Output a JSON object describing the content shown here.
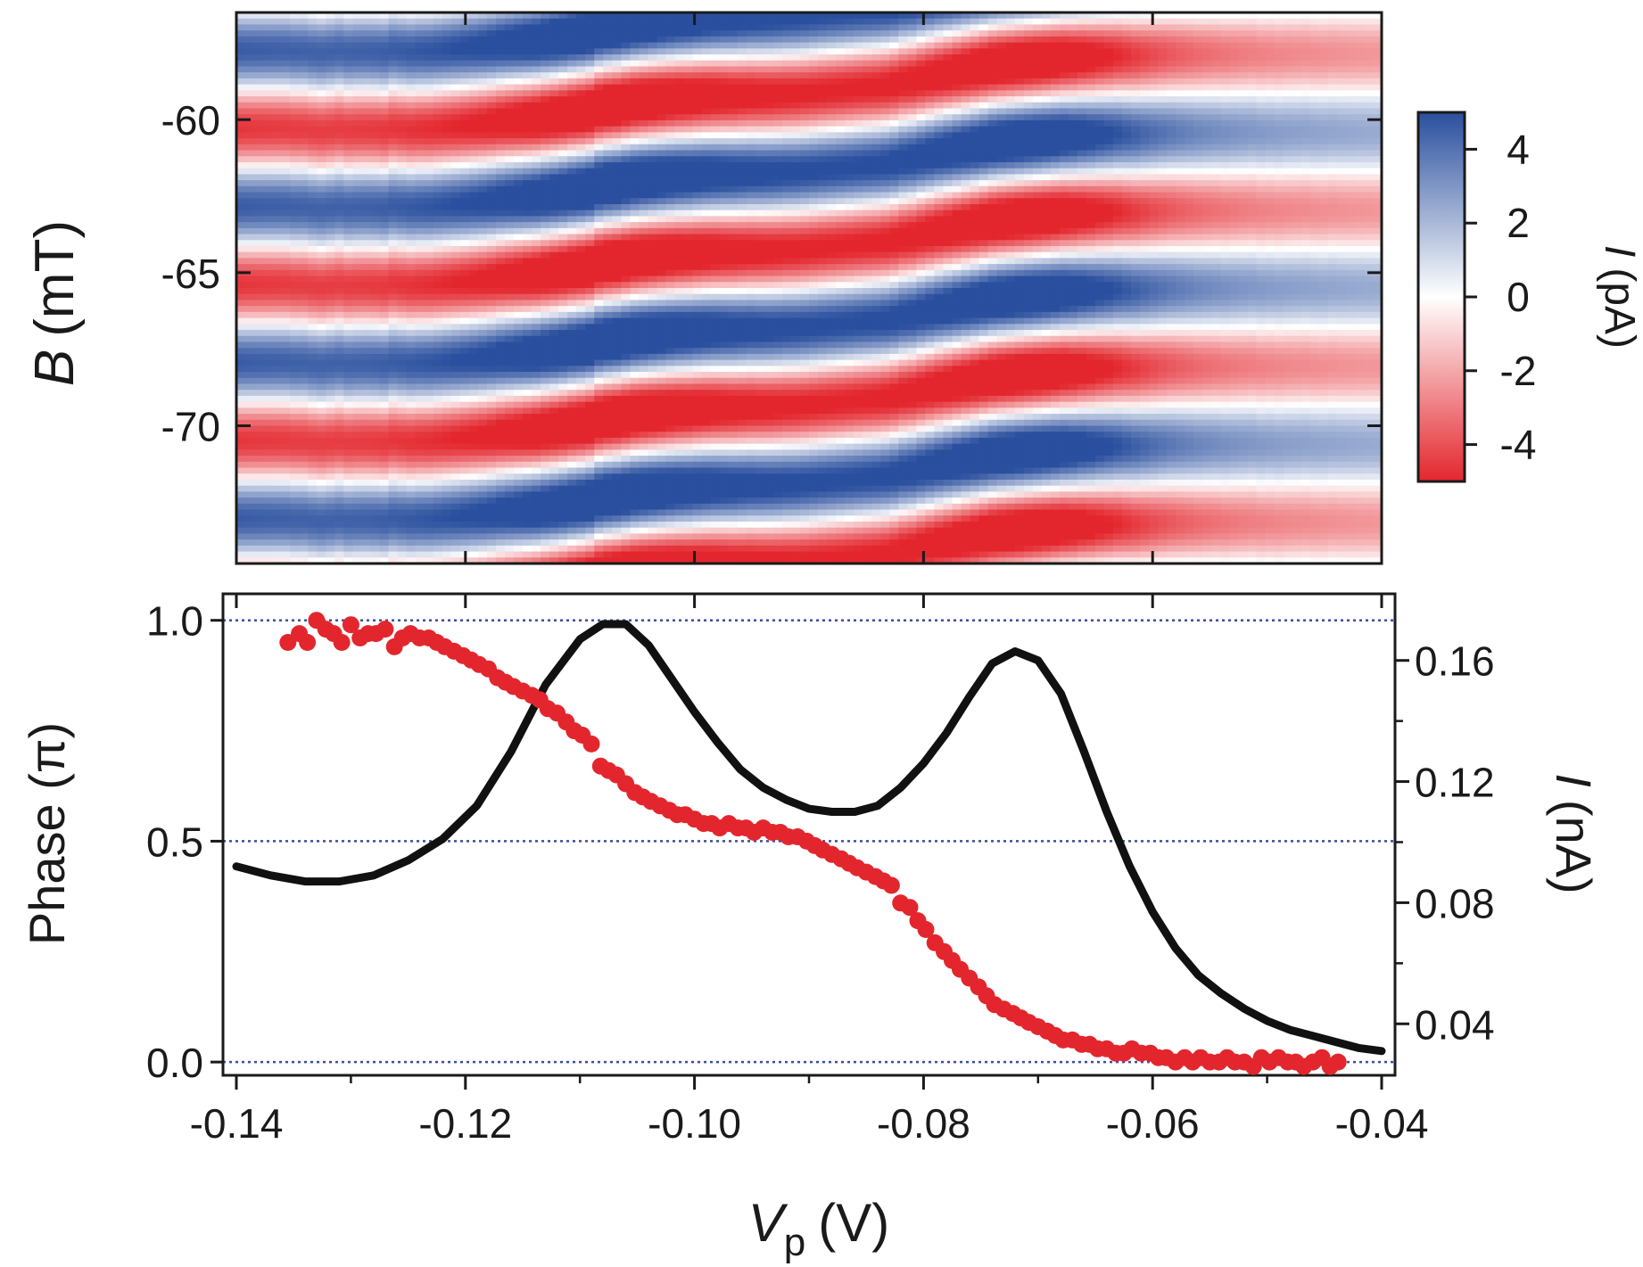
{
  "chart_data": [
    {
      "type": "heatmap",
      "panel": "top",
      "ylabel_symbol": "B",
      "ylabel_unit": "(mT)",
      "xlim": [
        -0.14,
        -0.04
      ],
      "ylim": [
        -74.5,
        -56.5
      ],
      "xticks": [
        -0.14,
        -0.12,
        -0.1,
        -0.08,
        -0.06,
        -0.04
      ],
      "yticks": [
        -60,
        -65,
        -70
      ],
      "ytick_labels": [
        "-60",
        "-65",
        "-70"
      ],
      "colorbar": {
        "label_symbol": "I",
        "label_unit": "(pA)",
        "range": [
          -5,
          5
        ],
        "ticks": [
          4,
          2,
          0,
          -2,
          -4
        ],
        "tick_labels": [
          "4",
          "2",
          "0",
          "-2",
          "-4"
        ],
        "colors": {
          "max": "#2a4f9e",
          "mid": "#ffffff",
          "min": "#e3262d"
        }
      },
      "pattern": {
        "amplitude_pA": 5,
        "period_mT": 5.1,
        "phase_offset_rad": 0.6,
        "phase_source": "bottom phase series"
      }
    },
    {
      "type": "scatter+line",
      "panel": "bottom",
      "xlabel_symbol": "V",
      "xlabel_subscript": "p",
      "xlabel_unit": "(V)",
      "xlim": [
        -0.14,
        -0.04
      ],
      "xticks": [
        -0.14,
        -0.12,
        -0.1,
        -0.08,
        -0.06,
        -0.04
      ],
      "xtick_labels": [
        "-0.14",
        "-0.12",
        "-0.10",
        "-0.08",
        "-0.06",
        "-0.04"
      ],
      "y_left": {
        "label": "Phase (π)",
        "lim": [
          -0.03,
          1.06
        ],
        "ticks": [
          0.0,
          0.5,
          1.0
        ],
        "tick_labels": [
          "0.0",
          "0.5",
          "1.0"
        ],
        "gridlines": [
          0.0,
          0.5,
          1.0
        ],
        "gridline_color": "#3b4ea0"
      },
      "y_right": {
        "label_symbol": "I",
        "label_unit": "(nA)",
        "lim": [
          0.023,
          0.182
        ],
        "ticks": [
          0.04,
          0.08,
          0.12,
          0.16
        ],
        "tick_labels": [
          "0.04",
          "0.08",
          "0.12",
          "0.16"
        ]
      },
      "series": [
        {
          "kind": "points",
          "axis": "left",
          "color": "#e3262d",
          "x": [
            -0.1355,
            -0.1345,
            -0.1338,
            -0.133,
            -0.1322,
            -0.1315,
            -0.1308,
            -0.13,
            -0.1292,
            -0.1285,
            -0.1278,
            -0.127,
            -0.1262,
            -0.1255,
            -0.1248,
            -0.124,
            -0.1232,
            -0.1225,
            -0.1218,
            -0.121,
            -0.1202,
            -0.1195,
            -0.1188,
            -0.118,
            -0.1172,
            -0.1165,
            -0.1158,
            -0.115,
            -0.1142,
            -0.1135,
            -0.1128,
            -0.112,
            -0.1112,
            -0.1105,
            -0.1098,
            -0.109,
            -0.1082,
            -0.1075,
            -0.1068,
            -0.106,
            -0.1052,
            -0.1045,
            -0.1038,
            -0.103,
            -0.1022,
            -0.1015,
            -0.1008,
            -0.1,
            -0.0992,
            -0.0985,
            -0.0978,
            -0.097,
            -0.0962,
            -0.0955,
            -0.0948,
            -0.094,
            -0.0932,
            -0.0925,
            -0.0918,
            -0.091,
            -0.0902,
            -0.0895,
            -0.0888,
            -0.088,
            -0.0872,
            -0.0865,
            -0.0858,
            -0.085,
            -0.0842,
            -0.0835,
            -0.0828,
            -0.082,
            -0.0812,
            -0.0805,
            -0.0798,
            -0.079,
            -0.0782,
            -0.0775,
            -0.0768,
            -0.076,
            -0.0752,
            -0.0745,
            -0.0738,
            -0.073,
            -0.0722,
            -0.0715,
            -0.0708,
            -0.07,
            -0.0692,
            -0.0685,
            -0.0678,
            -0.067,
            -0.0662,
            -0.0655,
            -0.0648,
            -0.064,
            -0.0632,
            -0.0625,
            -0.0618,
            -0.061,
            -0.0602,
            -0.0595,
            -0.0588,
            -0.058,
            -0.0572,
            -0.0565,
            -0.0558,
            -0.055,
            -0.0542,
            -0.0535,
            -0.0528,
            -0.052,
            -0.0512,
            -0.0505,
            -0.0498,
            -0.049,
            -0.0482,
            -0.0475,
            -0.0468,
            -0.046,
            -0.0452,
            -0.0445,
            -0.0438
          ],
          "y": [
            0.95,
            0.97,
            0.95,
            1.0,
            0.98,
            0.97,
            0.95,
            0.99,
            0.96,
            0.97,
            0.97,
            0.98,
            0.94,
            0.96,
            0.97,
            0.96,
            0.96,
            0.95,
            0.94,
            0.93,
            0.92,
            0.91,
            0.9,
            0.89,
            0.87,
            0.86,
            0.85,
            0.84,
            0.83,
            0.82,
            0.8,
            0.79,
            0.77,
            0.75,
            0.74,
            0.72,
            0.67,
            0.66,
            0.65,
            0.63,
            0.61,
            0.6,
            0.59,
            0.58,
            0.57,
            0.56,
            0.56,
            0.55,
            0.54,
            0.54,
            0.53,
            0.54,
            0.53,
            0.53,
            0.52,
            0.53,
            0.52,
            0.52,
            0.51,
            0.51,
            0.5,
            0.49,
            0.48,
            0.47,
            0.46,
            0.45,
            0.44,
            0.43,
            0.42,
            0.41,
            0.4,
            0.36,
            0.35,
            0.32,
            0.3,
            0.27,
            0.25,
            0.23,
            0.21,
            0.19,
            0.17,
            0.15,
            0.13,
            0.12,
            0.11,
            0.1,
            0.09,
            0.08,
            0.07,
            0.06,
            0.05,
            0.05,
            0.04,
            0.04,
            0.03,
            0.03,
            0.02,
            0.02,
            0.03,
            0.02,
            0.02,
            0.01,
            0.01,
            0.0,
            0.01,
            0.0,
            0.01,
            0.0,
            0.0,
            0.01,
            0.0,
            0.0,
            -0.01,
            0.01,
            0.0,
            0.01,
            0.0,
            0.0,
            -0.01,
            0.0,
            0.01,
            -0.01,
            0.0
          ]
        },
        {
          "kind": "line",
          "axis": "right",
          "color": "#111111",
          "x": [
            -0.14,
            -0.137,
            -0.134,
            -0.131,
            -0.128,
            -0.125,
            -0.122,
            -0.119,
            -0.116,
            -0.113,
            -0.11,
            -0.108,
            -0.106,
            -0.104,
            -0.102,
            -0.1,
            -0.098,
            -0.096,
            -0.094,
            -0.092,
            -0.09,
            -0.088,
            -0.086,
            -0.084,
            -0.082,
            -0.08,
            -0.078,
            -0.076,
            -0.074,
            -0.072,
            -0.07,
            -0.068,
            -0.066,
            -0.064,
            -0.062,
            -0.06,
            -0.058,
            -0.056,
            -0.054,
            -0.052,
            -0.05,
            -0.048,
            -0.046,
            -0.044,
            -0.042,
            -0.04
          ],
          "y": [
            0.092,
            0.089,
            0.087,
            0.087,
            0.089,
            0.094,
            0.101,
            0.112,
            0.13,
            0.152,
            0.167,
            0.172,
            0.172,
            0.165,
            0.154,
            0.143,
            0.133,
            0.124,
            0.118,
            0.114,
            0.111,
            0.11,
            0.11,
            0.112,
            0.118,
            0.126,
            0.136,
            0.148,
            0.159,
            0.163,
            0.16,
            0.149,
            0.13,
            0.11,
            0.092,
            0.077,
            0.065,
            0.056,
            0.05,
            0.045,
            0.041,
            0.038,
            0.036,
            0.034,
            0.032,
            0.031
          ]
        }
      ]
    }
  ]
}
